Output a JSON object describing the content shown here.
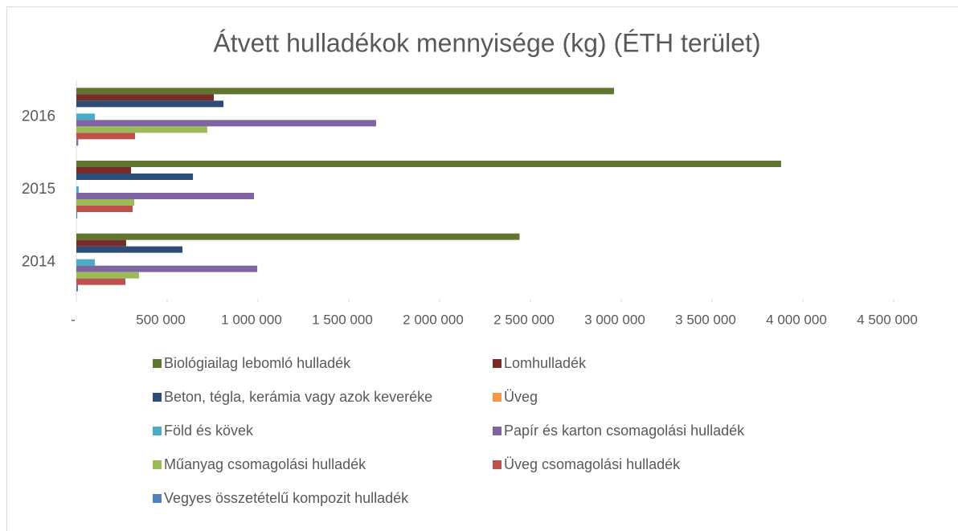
{
  "chart_data": {
    "type": "bar",
    "orientation": "horizontal",
    "title": "Átvett hulladékok mennyisége (kg) (ÉTH terület)",
    "categories": [
      "2014",
      "2015",
      "2016"
    ],
    "series": [
      {
        "name": "Biológiailag lebomló hulladék",
        "color": "#5f7530",
        "values": [
          2440000,
          3880000,
          2960000
        ]
      },
      {
        "name": "Lomhulladék",
        "color": "#772c2a",
        "values": [
          274000,
          301000,
          757000
        ]
      },
      {
        "name": "Beton, tégla, kerámia vagy azok keveréke",
        "color": "#2c4d75",
        "values": [
          584000,
          642000,
          810000
        ]
      },
      {
        "name": "Üveg",
        "color": "#f79646",
        "values": [
          0,
          0,
          0
        ]
      },
      {
        "name": "Föld és kövek",
        "color": "#4bacc6",
        "values": [
          102000,
          13000,
          102000
        ]
      },
      {
        "name": "Papír és karton csomagolási hulladék",
        "color": "#8064a2",
        "values": [
          996000,
          978000,
          1650000
        ]
      },
      {
        "name": "Műanyag csomagolási hulladék",
        "color": "#9bbb59",
        "values": [
          345000,
          319000,
          721000
        ]
      },
      {
        "name": "Üveg csomagolási hulladék",
        "color": "#c0504d",
        "values": [
          270000,
          310000,
          323000
        ]
      },
      {
        "name": "Vegyes összetételű kompozit hulladék",
        "color": "#4f81bd",
        "values": [
          9000,
          5000,
          10000
        ]
      }
    ],
    "xlim": [
      0,
      4500000
    ],
    "xticks": [
      {
        "value": 0,
        "label": "-"
      },
      {
        "value": 500000,
        "label": "500 000"
      },
      {
        "value": 1000000,
        "label": "1 000 000"
      },
      {
        "value": 1500000,
        "label": "1 500 000"
      },
      {
        "value": 2000000,
        "label": "2 000 000"
      },
      {
        "value": 2500000,
        "label": "2 500 000"
      },
      {
        "value": 3000000,
        "label": "3 000 000"
      },
      {
        "value": 3500000,
        "label": "3 500 000"
      },
      {
        "value": 4000000,
        "label": "4 000 000"
      },
      {
        "value": 4500000,
        "label": "4 500 000"
      }
    ],
    "grid": false,
    "legend": "bottom"
  }
}
